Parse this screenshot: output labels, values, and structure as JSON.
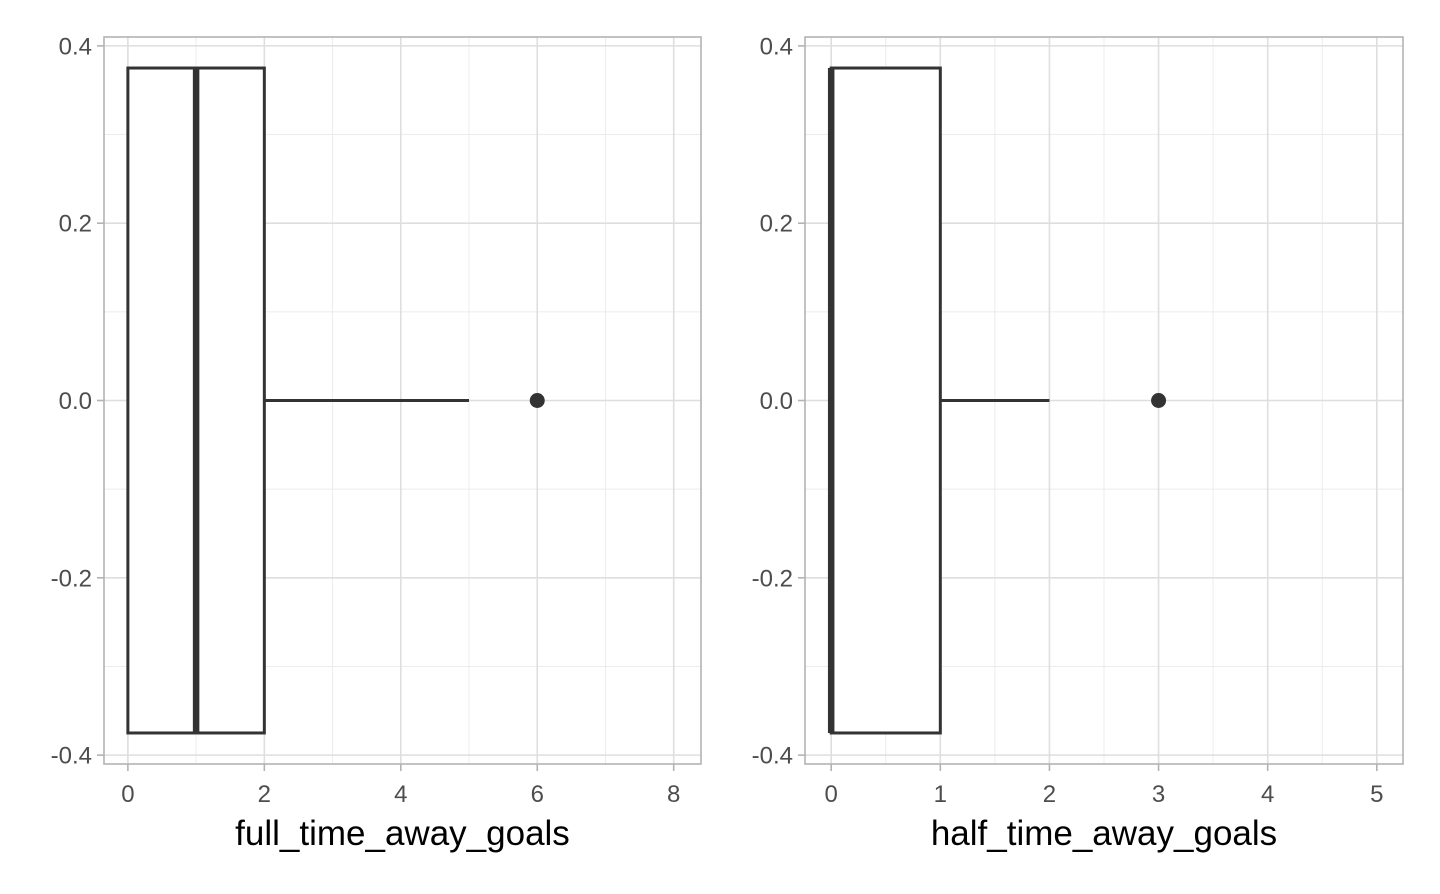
{
  "colors": {
    "background": "#ffffff",
    "panel_border": "#b3b3b3",
    "grid_major": "#dedede",
    "grid_minor": "#ececec",
    "box_stroke": "#333333",
    "tick_label": "#4d4d4d"
  },
  "chart_data": [
    {
      "type": "boxplot",
      "orientation": "horizontal",
      "xlabel": "full_time_away_goals",
      "ylabel": "",
      "xlim": [
        -0.35,
        8.4
      ],
      "ylim": [
        -0.41,
        0.41
      ],
      "x_ticks": [
        0,
        2,
        4,
        6,
        8
      ],
      "x_tick_labels": [
        "0",
        "2",
        "4",
        "6",
        "8"
      ],
      "y_ticks": [
        -0.4,
        -0.2,
        0.0,
        0.2,
        0.4
      ],
      "y_tick_labels": [
        "-0.4",
        "-0.2",
        "0.0",
        "0.2",
        "0.4"
      ],
      "grid": true,
      "box": {
        "min": 0,
        "q1": 0,
        "median": 1,
        "q3": 2,
        "whisker_high": 5,
        "outliers": [
          6
        ],
        "y_center": 0.0,
        "half_width": 0.375
      }
    },
    {
      "type": "boxplot",
      "orientation": "horizontal",
      "xlabel": "half_time_away_goals",
      "ylabel": "",
      "xlim": [
        -0.24,
        5.24
      ],
      "ylim": [
        -0.41,
        0.41
      ],
      "x_ticks": [
        0,
        1,
        2,
        3,
        4,
        5
      ],
      "x_tick_labels": [
        "0",
        "1",
        "2",
        "3",
        "4",
        "5"
      ],
      "y_ticks": [
        -0.4,
        -0.2,
        0.0,
        0.2,
        0.4
      ],
      "y_tick_labels": [
        "-0.4",
        "-0.2",
        "0.0",
        "0.2",
        "0.4"
      ],
      "grid": true,
      "box": {
        "min": 0,
        "q1": 0,
        "median": 0,
        "q3": 1,
        "whisker_high": 2,
        "outliers": [
          3
        ],
        "y_center": 0.0,
        "half_width": 0.375
      }
    }
  ]
}
